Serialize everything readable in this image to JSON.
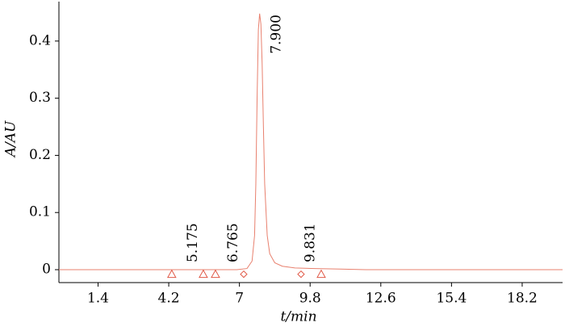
{
  "chart_data": {
    "type": "line",
    "xlabel": "t/min",
    "ylabel": "A/AU",
    "xlim": [
      -0.15,
      19.8
    ],
    "ylim": [
      -0.0226,
      0.469
    ],
    "xticks": [
      1.4,
      4.2,
      7,
      9.8,
      12.6,
      15.4,
      18.2
    ],
    "yticks": [
      0,
      0.1,
      0.2,
      0.3,
      0.4
    ],
    "series": [
      {
        "color": "#e8806e",
        "x": [
          -0.15,
          6.9,
          7.3,
          7.5,
          7.6,
          7.65,
          7.7,
          7.75,
          7.8,
          7.85,
          7.9,
          7.95,
          8.0,
          8.1,
          8.2,
          8.4,
          8.7,
          9.2,
          10,
          11,
          12,
          19.8
        ],
        "values": [
          0,
          0,
          0.002,
          0.015,
          0.06,
          0.15,
          0.3,
          0.42,
          0.448,
          0.43,
          0.36,
          0.25,
          0.15,
          0.06,
          0.028,
          0.012,
          0.006,
          0.003,
          0.002,
          0.001,
          0,
          0
        ]
      }
    ],
    "markers": {
      "color": "#e05a48",
      "shapes": [
        "triangle",
        "triangle",
        "triangle",
        "diamond",
        "diamond",
        "triangle"
      ],
      "x": [
        4.32,
        5.57,
        6.05,
        7.17,
        9.44,
        10.24
      ],
      "values": [
        -0.008,
        -0.008,
        -0.008,
        -0.008,
        -0.008,
        -0.008
      ]
    },
    "annotations": [
      {
        "value": 5.175,
        "label": "5.175"
      },
      {
        "value": 6.765,
        "label": "6.765"
      },
      {
        "value": 7.9,
        "label": "7.900"
      },
      {
        "value": 9.831,
        "label": "9.831"
      }
    ]
  }
}
